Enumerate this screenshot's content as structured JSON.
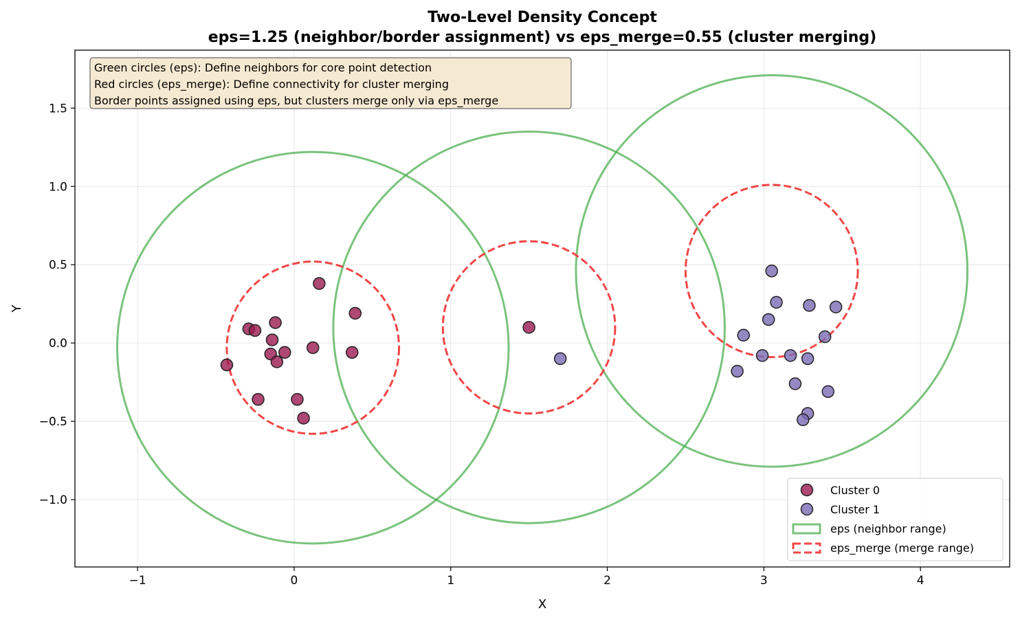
{
  "chart_data": {
    "type": "scatter",
    "title": "Two-Level Density Concept",
    "subtitle": "eps=1.25 (neighbor/border assignment) vs eps_merge=0.55 (cluster merging)",
    "xlabel": "X",
    "ylabel": "Y",
    "xlim": [
      -1.4,
      4.57
    ],
    "ylim": [
      -1.43,
      1.87
    ],
    "xticks": [
      {
        "value": -1,
        "label": "−1"
      },
      {
        "value": 0,
        "label": "0"
      },
      {
        "value": 1,
        "label": "1"
      },
      {
        "value": 2,
        "label": "2"
      },
      {
        "value": 3,
        "label": "3"
      },
      {
        "value": 4,
        "label": "4"
      }
    ],
    "yticks": [
      {
        "value": -1.0,
        "label": "−1.0"
      },
      {
        "value": -0.5,
        "label": "−0.5"
      },
      {
        "value": 0.0,
        "label": "0.0"
      },
      {
        "value": 0.5,
        "label": "0.5"
      },
      {
        "value": 1.0,
        "label": "1.0"
      },
      {
        "value": 1.5,
        "label": "1.5"
      }
    ],
    "grid": true,
    "annotation": {
      "lines": [
        "Green circles (eps): Define neighbors for core point detection",
        "Red circles (eps_merge): Define connectivity for cluster merging",
        "Border points assigned using eps, but clusters merge only via eps_merge"
      ],
      "placement": "top-left",
      "background": "#f6e9d2"
    },
    "series": [
      {
        "name": "Cluster 0",
        "color": "#9b1a4f",
        "points": [
          [
            -0.43,
            -0.14
          ],
          [
            -0.29,
            0.09
          ],
          [
            -0.25,
            0.08
          ],
          [
            -0.12,
            0.13
          ],
          [
            -0.14,
            0.02
          ],
          [
            -0.15,
            -0.07
          ],
          [
            -0.06,
            -0.06
          ],
          [
            -0.11,
            -0.12
          ],
          [
            0.12,
            -0.03
          ],
          [
            0.16,
            0.38
          ],
          [
            0.39,
            0.19
          ],
          [
            0.37,
            -0.06
          ],
          [
            -0.23,
            -0.36
          ],
          [
            0.02,
            -0.36
          ],
          [
            0.06,
            -0.48
          ],
          [
            1.5,
            0.1
          ]
        ]
      },
      {
        "name": "Cluster 1",
        "color": "#7b6bb4",
        "points": [
          [
            1.7,
            -0.1
          ],
          [
            3.05,
            0.46
          ],
          [
            3.08,
            0.26
          ],
          [
            3.29,
            0.24
          ],
          [
            3.46,
            0.23
          ],
          [
            3.03,
            0.15
          ],
          [
            2.87,
            0.05
          ],
          [
            3.39,
            0.04
          ],
          [
            2.99,
            -0.08
          ],
          [
            3.17,
            -0.08
          ],
          [
            3.28,
            -0.1
          ],
          [
            2.83,
            -0.18
          ],
          [
            3.2,
            -0.26
          ],
          [
            3.41,
            -0.31
          ],
          [
            3.28,
            -0.45
          ],
          [
            3.25,
            -0.49
          ]
        ]
      }
    ],
    "circles": [
      {
        "kind": "eps",
        "center": [
          0.12,
          -0.03
        ],
        "radius": 1.25
      },
      {
        "kind": "eps",
        "center": [
          1.5,
          0.1
        ],
        "radius": 1.25
      },
      {
        "kind": "eps",
        "center": [
          3.05,
          0.46
        ],
        "radius": 1.25
      },
      {
        "kind": "eps_merge",
        "center": [
          0.12,
          -0.03
        ],
        "radius": 0.55
      },
      {
        "kind": "eps_merge",
        "center": [
          1.5,
          0.1
        ],
        "radius": 0.55
      },
      {
        "kind": "eps_merge",
        "center": [
          3.05,
          0.46
        ],
        "radius": 0.55
      }
    ],
    "circle_styles": {
      "eps": {
        "color": "#4caf50",
        "dashed": false
      },
      "eps_merge": {
        "color": "#f03c3c",
        "dashed": true
      }
    },
    "legend": {
      "placement": "bottom-right",
      "entries": [
        {
          "label": "Cluster 0",
          "marker": "point",
          "color": "#9b1a4f"
        },
        {
          "label": "Cluster 1",
          "marker": "point",
          "color": "#7b6bb4"
        },
        {
          "label": "eps (neighbor range)",
          "marker": "box-solid",
          "color": "#4caf50"
        },
        {
          "label": "eps_merge (merge range)",
          "marker": "box-dashed",
          "color": "#f03c3c"
        }
      ]
    }
  }
}
